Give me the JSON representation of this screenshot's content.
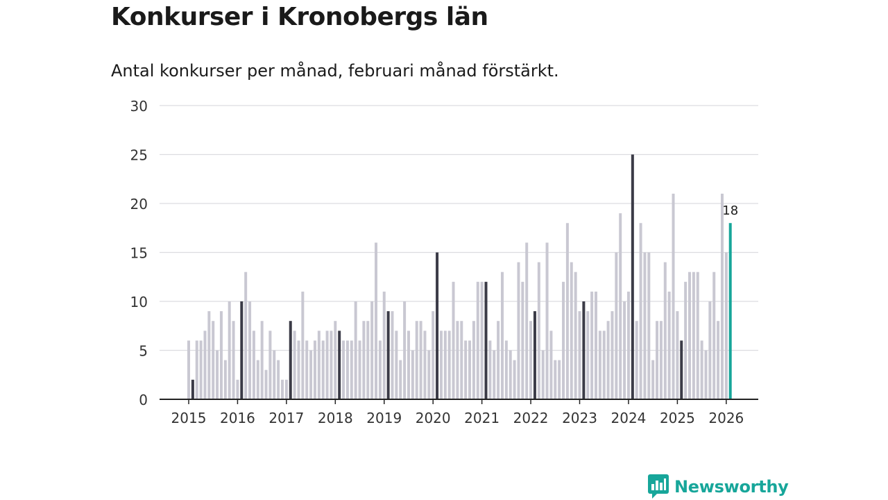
{
  "title": "Konkurser i Kronobergs län",
  "subtitle": "Antal konkurser per månad, februari månad förstärkt.",
  "brand": {
    "name": "Newsworthy",
    "icon": "bar-chart-speech-icon",
    "color": "#17a69a"
  },
  "chart_data": {
    "type": "bar",
    "title": "Konkurser i Kronobergs län",
    "xlabel": "",
    "ylabel": "",
    "ylim": [
      0,
      30
    ],
    "yticks": [
      0,
      5,
      10,
      15,
      20,
      25,
      30
    ],
    "grid": true,
    "x_tick_labels": [
      "2015",
      "2016",
      "2017",
      "2018",
      "2019",
      "2020",
      "2021",
      "2022",
      "2023",
      "2024",
      "2025",
      "2026"
    ],
    "start": "2015-01",
    "colors": {
      "normal": "#c9c8d2",
      "february": "#3b3b47",
      "latest": "#17a69a"
    },
    "series": [
      {
        "name": "Antal konkurser",
        "values": [
          6,
          2,
          6,
          6,
          7,
          9,
          8,
          5,
          9,
          4,
          10,
          8,
          2,
          10,
          13,
          10,
          7,
          4,
          8,
          3,
          7,
          5,
          4,
          2,
          2,
          8,
          7,
          6,
          11,
          6,
          5,
          6,
          7,
          6,
          7,
          7,
          8,
          7,
          6,
          6,
          6,
          10,
          6,
          8,
          8,
          10,
          16,
          6,
          11,
          9,
          9,
          7,
          4,
          10,
          7,
          5,
          8,
          8,
          7,
          5,
          9,
          15,
          7,
          7,
          7,
          12,
          8,
          8,
          6,
          6,
          8,
          12,
          12,
          12,
          6,
          5,
          8,
          13,
          6,
          5,
          4,
          14,
          12,
          16,
          8,
          9,
          14,
          5,
          16,
          7,
          4,
          4,
          12,
          18,
          14,
          13,
          9,
          10,
          9,
          11,
          11,
          7,
          7,
          8,
          9,
          15,
          19,
          10,
          11,
          25,
          8,
          18,
          15,
          15,
          4,
          8,
          8,
          14,
          11,
          21,
          9,
          6,
          12,
          13,
          13,
          13,
          6,
          5,
          10,
          13,
          8,
          21,
          15,
          18
        ]
      }
    ],
    "annotations": [
      {
        "index": 133,
        "text": "18"
      }
    ]
  }
}
